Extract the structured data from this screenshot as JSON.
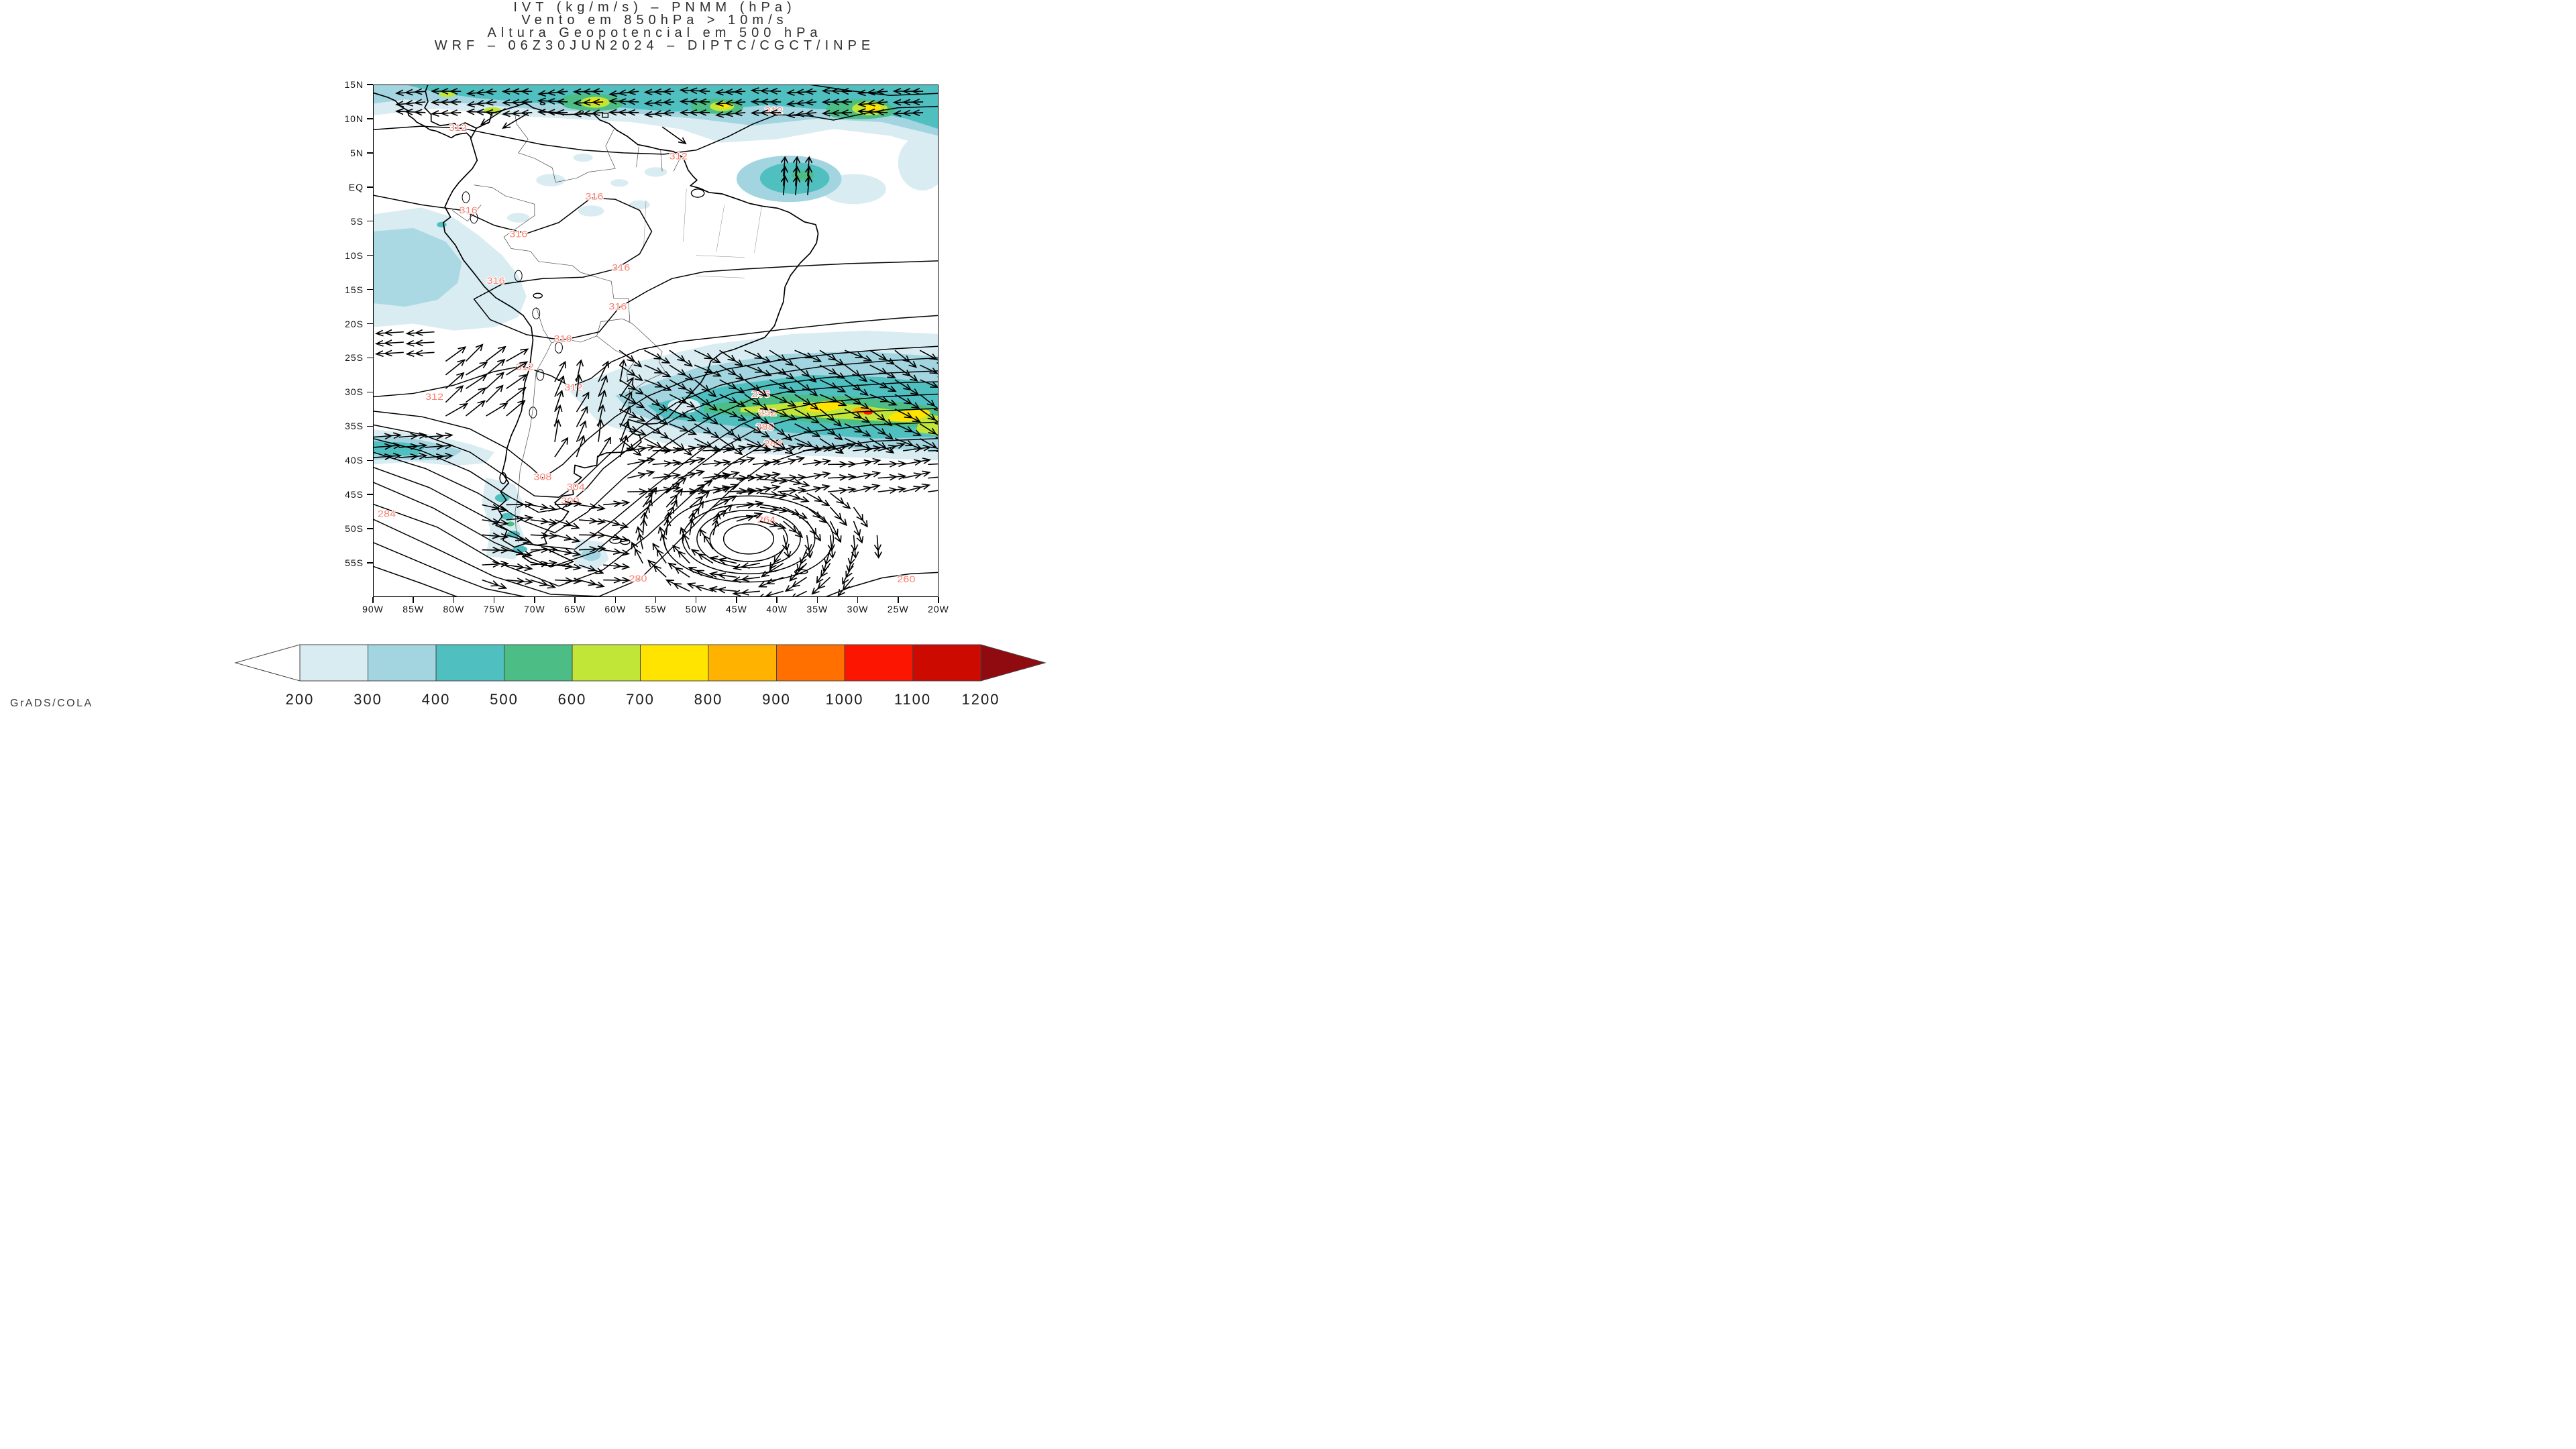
{
  "title": {
    "line1": "IVT (kg/m/s) – PNMM (hPa)",
    "line2": "Vento em 850hPa > 10m/s",
    "line3": "Altura Geopotencial em 500 hPa",
    "line4": "WRF – 06Z30JUN2024 – DIPTC/CGCT/INPE"
  },
  "watermark": "GrADS/COLA",
  "axes": {
    "lat_ticks": [
      {
        "label": "15N",
        "lat": 15
      },
      {
        "label": "10N",
        "lat": 10
      },
      {
        "label": "5N",
        "lat": 5
      },
      {
        "label": "EQ",
        "lat": 0
      },
      {
        "label": "5S",
        "lat": -5
      },
      {
        "label": "10S",
        "lat": -10
      },
      {
        "label": "15S",
        "lat": -15
      },
      {
        "label": "20S",
        "lat": -20
      },
      {
        "label": "25S",
        "lat": -25
      },
      {
        "label": "30S",
        "lat": -30
      },
      {
        "label": "35S",
        "lat": -35
      },
      {
        "label": "40S",
        "lat": -40
      },
      {
        "label": "45S",
        "lat": -45
      },
      {
        "label": "50S",
        "lat": -50
      },
      {
        "label": "55S",
        "lat": -55
      }
    ],
    "lon_ticks": [
      {
        "label": "90W",
        "lon": -90
      },
      {
        "label": "85W",
        "lon": -85
      },
      {
        "label": "80W",
        "lon": -80
      },
      {
        "label": "75W",
        "lon": -75
      },
      {
        "label": "70W",
        "lon": -70
      },
      {
        "label": "65W",
        "lon": -65
      },
      {
        "label": "60W",
        "lon": -60
      },
      {
        "label": "55W",
        "lon": -55
      },
      {
        "label": "50W",
        "lon": -50
      },
      {
        "label": "45W",
        "lon": -45
      },
      {
        "label": "40W",
        "lon": -40
      },
      {
        "label": "35W",
        "lon": -35
      },
      {
        "label": "30W",
        "lon": -30
      },
      {
        "label": "25W",
        "lon": -25
      },
      {
        "label": "20W",
        "lon": -20
      }
    ]
  },
  "colorbar": {
    "labels": [
      "200",
      "300",
      "400",
      "500",
      "600",
      "700",
      "800",
      "900",
      "1000",
      "1100",
      "1200"
    ],
    "segment_colors": [
      "#d8ecf2",
      "#a2d5e0",
      "#50bfc0",
      "#4cbe85",
      "#c1e637",
      "#ffe400",
      "#ffb300",
      "#ff7000",
      "#fc1500",
      "#cd0a00"
    ],
    "under_color": "#ffffff",
    "over_color": "#8f0b10",
    "outline": "#444444"
  },
  "contour_label_color": "#fa8072",
  "chart_data": {
    "type": "heatmap",
    "subtype": "meteorological-map",
    "region": {
      "lon_min": -90,
      "lon_max": -20,
      "lat_min": -60,
      "lat_max": 15
    },
    "shaded_field": {
      "name": "IVT",
      "units": "kg/m/s",
      "scale_values": [
        200,
        300,
        400,
        500,
        600,
        700,
        800,
        900,
        1000,
        1100,
        1200
      ],
      "palette": [
        "#d8ecf2",
        "#a2d5e0",
        "#50bfc0",
        "#4cbe85",
        "#c1e637",
        "#ffe400",
        "#ffb300",
        "#ff7000",
        "#fc1500",
        "#cd0a00",
        "#8f0b10"
      ],
      "max_features": "Tropical Atlantic easterly band 10N-15N; atmospheric-river band 25S-38S reaching >1000 kg/m/s near 29W 33S"
    },
    "vector_field": {
      "name": "Vento em 850hPa",
      "threshold": "> 10m/s"
    },
    "contour_field": {
      "name": "Altura Geopotencial em 500 hPa",
      "labels": [
        {
          "v": "312",
          "lon": -79.5,
          "lat": 8.7
        },
        {
          "v": "312",
          "lon": -52.2,
          "lat": 4.5
        },
        {
          "v": "312",
          "lon": -40.4,
          "lat": 11.2
        },
        {
          "v": "316",
          "lon": -78.2,
          "lat": -3.4
        },
        {
          "v": "316",
          "lon": -62.6,
          "lat": -1.4
        },
        {
          "v": "316",
          "lon": -72.0,
          "lat": -6.9
        },
        {
          "v": "316",
          "lon": -59.3,
          "lat": -11.8
        },
        {
          "v": "316",
          "lon": -74.8,
          "lat": -13.7
        },
        {
          "v": "316",
          "lon": -59.7,
          "lat": -17.5
        },
        {
          "v": "316",
          "lon": -66.5,
          "lat": -22.2
        },
        {
          "v": "312",
          "lon": -82.4,
          "lat": -30.7
        },
        {
          "v": "312",
          "lon": -71.2,
          "lat": -26.3
        },
        {
          "v": "312",
          "lon": -65.2,
          "lat": -29.3
        },
        {
          "v": "308",
          "lon": -69.0,
          "lat": -42.4
        },
        {
          "v": "304",
          "lon": -64.9,
          "lat": -43.9
        },
        {
          "v": "300",
          "lon": -65.6,
          "lat": -45.9
        },
        {
          "v": "296",
          "lon": -42.0,
          "lat": -30.3
        },
        {
          "v": "292",
          "lon": -41.2,
          "lat": -33.0
        },
        {
          "v": "288",
          "lon": -41.5,
          "lat": -35.1
        },
        {
          "v": "284",
          "lon": -40.5,
          "lat": -37.5
        },
        {
          "v": "284",
          "lon": -88.3,
          "lat": -47.8
        },
        {
          "v": "280",
          "lon": -57.2,
          "lat": -57.3
        },
        {
          "v": "264",
          "lon": -41.3,
          "lat": -48.7
        },
        {
          "v": "260",
          "lon": -24.0,
          "lat": -57.4
        }
      ]
    },
    "wind_systems": [
      {
        "name": "tropical-easterlies",
        "kind": "grid",
        "lon": [
          -83.5,
          -21,
          4.4
        ],
        "lat": [
          10.9,
          14.7,
          1.55
        ],
        "angle": 182,
        "jitter": 5,
        "len": 3.6,
        "chev": 3
      },
      {
        "name": "equator-northerly-cluster",
        "kind": "grid",
        "lon": [
          -39.2,
          -34.8,
          1.5
        ],
        "lat": [
          -1.2,
          2.2,
          1.4
        ],
        "angle": 86,
        "len": 2.8,
        "chev": 1
      },
      {
        "name": "caribbean-inflow",
        "kind": "list",
        "arrows": [
          [
            -73.6,
            11.5,
            218
          ],
          [
            -70.8,
            10.8,
            215
          ],
          [
            -54.2,
            8.8,
            -40
          ]
        ],
        "len": 3.8,
        "chev": 1
      },
      {
        "name": "pacific-easterlies-20s",
        "kind": "grid",
        "lon": [
          -90,
          -80.5,
          3.8
        ],
        "lat": [
          -24.2,
          -19.8,
          1.5
        ],
        "angle": 184,
        "len": 3.4,
        "chev": 2
      },
      {
        "name": "peru-coast-northeasterly",
        "kind": "grid",
        "lon": [
          -81,
          -72.8,
          2.5
        ],
        "lat": [
          -33.5,
          -24.5,
          2.0
        ],
        "angle": 42,
        "jitter": 8,
        "len": 3.2,
        "chev": 1
      },
      {
        "name": "left-westerly-jet-38s",
        "kind": "grid",
        "lon": [
          -90,
          -83,
          3.2
        ],
        "lat": [
          -39.6,
          -36.4,
          1.5
        ],
        "angle": 5,
        "len": 3.4,
        "chev": 2
      },
      {
        "name": "argentina-northerly-feed",
        "kind": "grid",
        "lon": [
          -67.5,
          -57.2,
          2.7
        ],
        "lat": [
          -39.5,
          -26.5,
          2.2
        ],
        "angle": 72,
        "jitter": 12,
        "len": 3.2,
        "chev": 1
      },
      {
        "name": "atlantic-river-band",
        "kind": "grid",
        "lon": [
          -59.5,
          -20.3,
          3.1
        ],
        "lat": [
          -36.8,
          -23.2,
          2.15
        ],
        "angle": -34,
        "jitter": 9,
        "len": 3.6,
        "chev": 2
      },
      {
        "name": "south-westerly-band",
        "kind": "grid",
        "lon": [
          -58.5,
          -20.3,
          3.1
        ],
        "lat": [
          -44.6,
          -37.8,
          2.0
        ],
        "angle": 9,
        "jitter": 8,
        "len": 3.4,
        "chev": 2
      },
      {
        "name": "patagonia-westerlies",
        "kind": "grid",
        "lon": [
          -76.5,
          -59.5,
          3.0
        ],
        "lat": [
          -57.5,
          -44.8,
          2.2
        ],
        "angle": -8,
        "jitter": 14,
        "len": 3.2,
        "chev": 2
      },
      {
        "name": "atlantic-cyclone",
        "kind": "vortex",
        "center": [
          -43.5,
          -51.5
        ],
        "rx": 16,
        "ry": 9.7,
        "rmin": 0.24,
        "step": [
          2.9,
          2.05
        ],
        "len": 3.3,
        "chev": 2
      }
    ],
    "credit": "DIPTC/CGCT/INPE",
    "model_run": "WRF 06Z30JUN2024"
  }
}
